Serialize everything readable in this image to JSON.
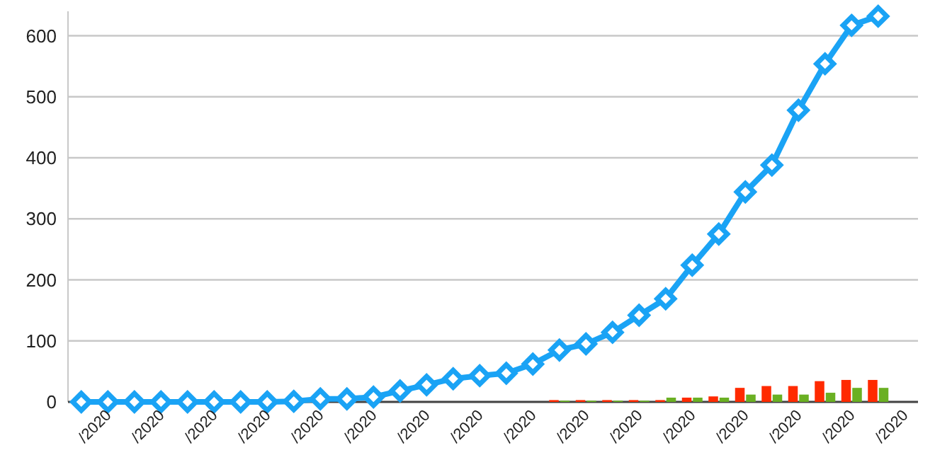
{
  "chart_data": {
    "type": "line",
    "categories": [
      null,
      "/2020",
      null,
      "/2020",
      null,
      "/2020",
      null,
      "/2020",
      null,
      "/2020",
      null,
      "/2020",
      null,
      "/2020",
      null,
      "/2020",
      null,
      "/2020",
      null,
      "/2020",
      null,
      "/2020",
      null,
      "/2020",
      null,
      "/2020",
      null,
      "/2020",
      null,
      "/2020",
      null,
      "/2020"
    ],
    "series": [
      {
        "color": "#1aa3f5",
        "values": [
          0,
          0,
          0,
          0,
          0,
          0,
          0,
          0,
          1,
          5,
          5,
          8,
          18,
          28,
          38,
          43,
          47,
          62,
          85,
          95,
          114,
          142,
          169,
          224,
          275,
          344,
          388,
          478,
          554,
          617,
          632,
          null
        ]
      },
      {
        "type": "bar",
        "color": "#ff2a00",
        "values": [
          null,
          null,
          null,
          null,
          null,
          null,
          null,
          null,
          null,
          null,
          null,
          null,
          null,
          null,
          null,
          null,
          null,
          null,
          3,
          3,
          3,
          3,
          3,
          7,
          9,
          23,
          26,
          26,
          34,
          36,
          36,
          null
        ]
      },
      {
        "type": "bar",
        "color": "#6ab023",
        "values": [
          null,
          null,
          null,
          null,
          null,
          null,
          null,
          null,
          null,
          null,
          null,
          null,
          null,
          null,
          null,
          null,
          null,
          null,
          2,
          2,
          2,
          2,
          7,
          7,
          7,
          12,
          12,
          12,
          15,
          23,
          23,
          null
        ]
      }
    ],
    "ylim": [
      0,
      640
    ],
    "yticks": [
      0,
      100,
      200,
      300,
      400,
      500,
      600
    ],
    "grid": "y",
    "marker": "diamond",
    "line_style": "solid"
  }
}
